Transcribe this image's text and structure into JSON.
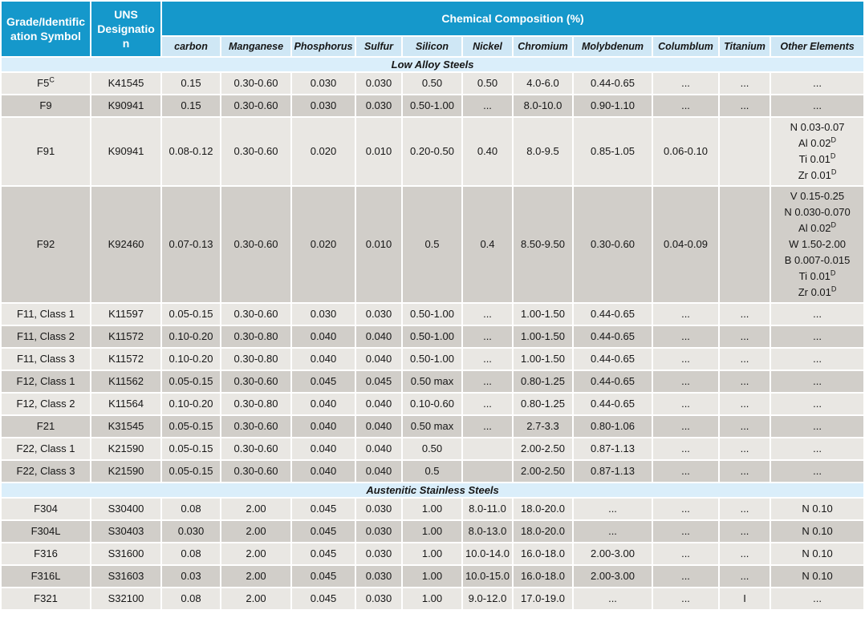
{
  "colors": {
    "header_bg": "#1598cb",
    "subheader_bg": "#cfe7f5",
    "section_bg": "#daeefa",
    "row_light": "#e9e7e3",
    "row_dark": "#d1cec9"
  },
  "table": {
    "grade_header": "Grade/Identification Symbol",
    "uns_header": "UNS Designation",
    "composition_header": "Chemical Composition (%)",
    "columns": [
      "carbon",
      "Manganese",
      "Phosphorus",
      "Sulfur",
      "Silicon",
      "Nickel",
      "Chromium",
      "Molybdenum",
      "Columblum",
      "Titanium",
      "Other Elements"
    ],
    "sections": [
      {
        "title": "Low Alloy Steels",
        "rows": [
          {
            "grade": "F5^C",
            "uns": "K41545",
            "values": [
              "0.15",
              "0.30-0.60",
              "0.030",
              "0.030",
              "0.50",
              "0.50",
              "4.0-6.0",
              "0.44-0.65",
              "...",
              "...",
              "..."
            ]
          },
          {
            "grade": "F9",
            "uns": "K90941",
            "values": [
              "0.15",
              "0.30-0.60",
              "0.030",
              "0.030",
              "0.50-1.00",
              "...",
              "8.0-10.0",
              "0.90-1.10",
              "...",
              "...",
              "..."
            ]
          },
          {
            "grade": "F91",
            "uns": "K90941",
            "values": [
              "0.08-0.12",
              "0.30-0.60",
              "0.020",
              "0.010",
              "0.20-0.50",
              "0.40",
              "8.0-9.5",
              "0.85-1.05",
              "0.06-0.10",
              "",
              [
                "N 0.03-0.07",
                "Al 0.02^D",
                "Ti 0.01^D",
                "Zr 0.01^D"
              ]
            ]
          },
          {
            "grade": "F92",
            "uns": "K92460",
            "values": [
              "0.07-0.13",
              "0.30-0.60",
              "0.020",
              "0.010",
              "0.5",
              "0.4",
              "8.50-9.50",
              "0.30-0.60",
              "0.04-0.09",
              "",
              [
                "V 0.15-0.25",
                "N 0.030-0.070",
                "Al 0.02^D",
                "W 1.50-2.00",
                "B 0.007-0.015",
                "Ti 0.01^D",
                "Zr 0.01^D"
              ]
            ]
          },
          {
            "grade": "F11, Class 1",
            "uns": "K11597",
            "values": [
              "0.05-0.15",
              "0.30-0.60",
              "0.030",
              "0.030",
              "0.50-1.00",
              "...",
              "1.00-1.50",
              "0.44-0.65",
              "...",
              "...",
              "..."
            ]
          },
          {
            "grade": "F11, Class 2",
            "uns": "K11572",
            "values": [
              "0.10-0.20",
              "0.30-0.80",
              "0.040",
              "0.040",
              "0.50-1.00",
              "...",
              "1.00-1.50",
              "0.44-0.65",
              "...",
              "...",
              "..."
            ]
          },
          {
            "grade": "F11, Class 3",
            "uns": "K11572",
            "values": [
              "0.10-0.20",
              "0.30-0.80",
              "0.040",
              "0.040",
              "0.50-1.00",
              "...",
              "1.00-1.50",
              "0.44-0.65",
              "...",
              "...",
              "..."
            ]
          },
          {
            "grade": "F12, Class 1",
            "uns": "K11562",
            "values": [
              "0.05-0.15",
              "0.30-0.60",
              "0.045",
              "0.045",
              "0.50 max",
              "...",
              "0.80-1.25",
              "0.44-0.65",
              "...",
              "...",
              "..."
            ]
          },
          {
            "grade": "F12, Class 2",
            "uns": "K11564",
            "values": [
              "0.10-0.20",
              "0.30-0.80",
              "0.040",
              "0.040",
              "0.10-0.60",
              "...",
              "0.80-1.25",
              "0.44-0.65",
              "...",
              "...",
              "..."
            ]
          },
          {
            "grade": "F21",
            "uns": "K31545",
            "values": [
              "0.05-0.15",
              "0.30-0.60",
              "0.040",
              "0.040",
              "0.50 max",
              "...",
              "2.7-3.3",
              "0.80-1.06",
              "...",
              "...",
              "..."
            ]
          },
          {
            "grade": "F22, Class 1",
            "uns": "K21590",
            "values": [
              "0.05-0.15",
              "0.30-0.60",
              "0.040",
              "0.040",
              "0.50",
              "",
              "2.00-2.50",
              "0.87-1.13",
              "...",
              "...",
              "..."
            ]
          },
          {
            "grade": "F22, Class 3",
            "uns": "K21590",
            "values": [
              "0.05-0.15",
              "0.30-0.60",
              "0.040",
              "0.040",
              "0.5",
              "",
              "2.00-2.50",
              "0.87-1.13",
              "...",
              "...",
              "..."
            ]
          }
        ]
      },
      {
        "title": "Austenitic Stainless Steels",
        "rows": [
          {
            "grade": "F304",
            "uns": "S30400",
            "values": [
              "0.08",
              "2.00",
              "0.045",
              "0.030",
              "1.00",
              "8.0-11.0",
              "18.0-20.0",
              "...",
              "...",
              "...",
              "N 0.10"
            ]
          },
          {
            "grade": "F304L",
            "uns": "S30403",
            "values": [
              "0.030",
              "2.00",
              "0.045",
              "0.030",
              "1.00",
              "8.0-13.0",
              "18.0-20.0",
              "...",
              "...",
              "...",
              "N 0.10"
            ]
          },
          {
            "grade": "F316",
            "uns": "S31600",
            "values": [
              "0.08",
              "2.00",
              "0.045",
              "0.030",
              "1.00",
              "10.0-14.0",
              "16.0-18.0",
              "2.00-3.00",
              "...",
              "...",
              "N 0.10"
            ]
          },
          {
            "grade": "F316L",
            "uns": "S31603",
            "values": [
              "0.03",
              "2.00",
              "0.045",
              "0.030",
              "1.00",
              "10.0-15.0",
              "16.0-18.0",
              "2.00-3.00",
              "...",
              "...",
              "N 0.10"
            ]
          },
          {
            "grade": "F321",
            "uns": "S32100",
            "values": [
              "0.08",
              "2.00",
              "0.045",
              "0.030",
              "1.00",
              "9.0-12.0",
              "17.0-19.0",
              "...",
              "...",
              "I",
              "..."
            ]
          }
        ]
      }
    ]
  }
}
